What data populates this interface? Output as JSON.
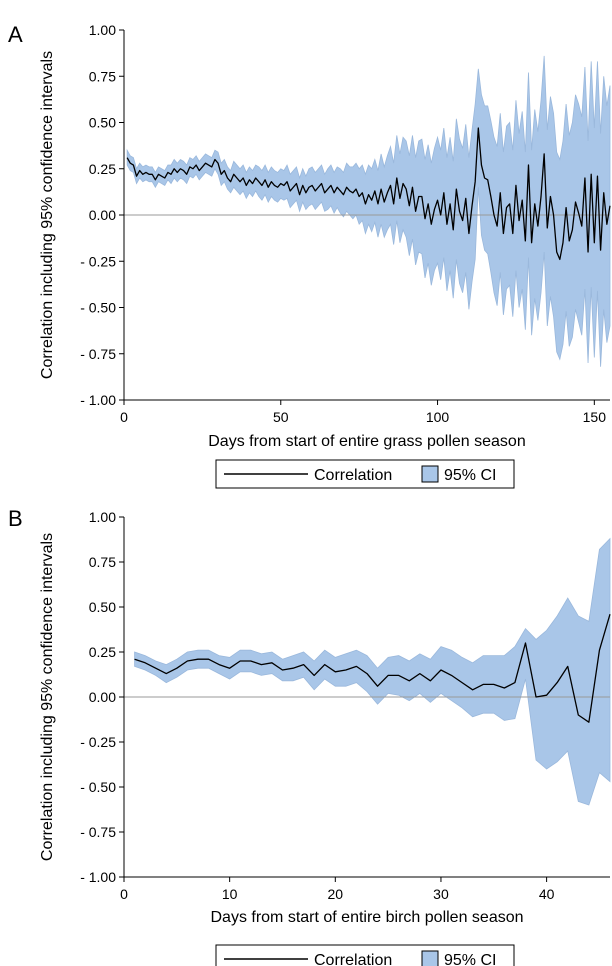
{
  "chart_data": [
    {
      "type": "line",
      "panel_label": "A",
      "xlabel": "Days from start of entire grass pollen season",
      "ylabel": "Correlation including 95% confidence intervals",
      "xlim": [
        0,
        155
      ],
      "ylim": [
        -1,
        1
      ],
      "x_ticks": [
        0,
        50,
        100,
        150
      ],
      "x_tick_labels": [
        "0",
        "50",
        "100",
        "150"
      ],
      "y_ticks": [
        1,
        0.75,
        0.5,
        0.25,
        0,
        -0.25,
        -0.5,
        -0.75,
        -1
      ],
      "y_tick_labels": [
        "1.00",
        "0.75",
        "0.50",
        "0.25",
        "0.00",
        "- 0.25",
        "- 0.50",
        "- 0.75",
        "- 1.00"
      ],
      "reference_line_y": 0,
      "legend": {
        "line_label": "Correlation",
        "band_label": "95% CI",
        "placement": "bottom"
      },
      "colors": {
        "line": "#000000",
        "band": "#a9c6e8",
        "band_edge": "#9ab8dc",
        "reference": "#999999"
      },
      "series": [
        {
          "name": "Correlation",
          "x": [
            1,
            2,
            3,
            4,
            5,
            6,
            7,
            8,
            9,
            10,
            11,
            12,
            13,
            14,
            15,
            16,
            17,
            18,
            19,
            20,
            21,
            22,
            23,
            24,
            25,
            26,
            27,
            28,
            29,
            30,
            31,
            32,
            33,
            34,
            35,
            36,
            37,
            38,
            39,
            40,
            41,
            42,
            43,
            44,
            45,
            46,
            47,
            48,
            49,
            50,
            51,
            52,
            53,
            54,
            55,
            56,
            57,
            58,
            59,
            60,
            61,
            62,
            63,
            64,
            65,
            66,
            67,
            68,
            69,
            70,
            71,
            72,
            73,
            74,
            75,
            76,
            77,
            78,
            79,
            80,
            81,
            82,
            83,
            84,
            85,
            86,
            87,
            88,
            89,
            90,
            91,
            92,
            93,
            94,
            95,
            96,
            97,
            98,
            99,
            100,
            101,
            102,
            103,
            104,
            105,
            106,
            107,
            108,
            109,
            110,
            111,
            112,
            113,
            114,
            115,
            116,
            117,
            118,
            119,
            120,
            121,
            122,
            123,
            124,
            125,
            126,
            127,
            128,
            129,
            130,
            131,
            132,
            133,
            134,
            135,
            136,
            137,
            138,
            139,
            140,
            141,
            142,
            143,
            144,
            145,
            146,
            147,
            148,
            149,
            150,
            151,
            152,
            153,
            154,
            155
          ],
          "values": [
            0.31,
            0.28,
            0.27,
            0.21,
            0.24,
            0.22,
            0.23,
            0.22,
            0.22,
            0.19,
            0.22,
            0.21,
            0.2,
            0.23,
            0.22,
            0.25,
            0.23,
            0.25,
            0.24,
            0.22,
            0.26,
            0.25,
            0.27,
            0.24,
            0.26,
            0.28,
            0.27,
            0.26,
            0.3,
            0.28,
            0.22,
            0.24,
            0.2,
            0.18,
            0.22,
            0.2,
            0.18,
            0.2,
            0.16,
            0.19,
            0.17,
            0.2,
            0.18,
            0.16,
            0.19,
            0.15,
            0.18,
            0.16,
            0.15,
            0.17,
            0.16,
            0.18,
            0.13,
            0.15,
            0.17,
            0.11,
            0.16,
            0.12,
            0.15,
            0.16,
            0.13,
            0.15,
            0.17,
            0.12,
            0.14,
            0.16,
            0.12,
            0.15,
            0.13,
            0.11,
            0.15,
            0.13,
            0.12,
            0.14,
            0.1,
            0.12,
            0.06,
            0.11,
            0.08,
            0.13,
            0.06,
            0.14,
            0.07,
            0.12,
            0.16,
            0.06,
            0.2,
            0.09,
            0.17,
            0.14,
            0.05,
            0.15,
            0.02,
            0.1,
            0.1,
            -0.02,
            0.06,
            -0.05,
            0.03,
            0.08,
            0.0,
            0.12,
            -0.05,
            0.06,
            -0.08,
            0.14,
            0.02,
            -0.03,
            0.09,
            -0.1,
            0.05,
            0.18,
            0.47,
            0.27,
            0.2,
            0.19,
            0.1,
            0.0,
            -0.06,
            0.12,
            -0.1,
            0.04,
            0.06,
            -0.1,
            0.16,
            -0.03,
            0.08,
            -0.14,
            0.27,
            -0.15,
            0.06,
            -0.06,
            0.1,
            0.33,
            -0.07,
            0.1,
            0.0,
            -0.2,
            -0.24,
            -0.15,
            0.04,
            -0.14,
            -0.08,
            0.07,
            0.01,
            -0.06,
            0.2,
            -0.2,
            0.22,
            -0.15,
            0.21,
            -0.19,
            0.12,
            -0.05,
            0.05
          ]
        }
      ],
      "band": {
        "name": "95% CI",
        "lower": [
          0.27,
          0.24,
          0.23,
          0.17,
          0.2,
          0.18,
          0.19,
          0.18,
          0.18,
          0.15,
          0.18,
          0.17,
          0.16,
          0.19,
          0.17,
          0.2,
          0.18,
          0.2,
          0.19,
          0.17,
          0.21,
          0.2,
          0.22,
          0.19,
          0.21,
          0.23,
          0.22,
          0.21,
          0.25,
          0.22,
          0.16,
          0.18,
          0.14,
          0.12,
          0.15,
          0.13,
          0.11,
          0.13,
          0.09,
          0.12,
          0.1,
          0.13,
          0.1,
          0.08,
          0.11,
          0.07,
          0.1,
          0.08,
          0.07,
          0.09,
          0.08,
          0.09,
          0.04,
          0.06,
          0.08,
          0.02,
          0.07,
          0.03,
          0.05,
          0.06,
          0.03,
          0.05,
          0.07,
          0.02,
          0.03,
          0.05,
          0.01,
          0.04,
          0.01,
          -0.01,
          0.02,
          0.0,
          -0.02,
          0.0,
          -0.05,
          -0.03,
          -0.1,
          -0.05,
          -0.09,
          -0.04,
          -0.12,
          -0.05,
          -0.12,
          -0.08,
          -0.05,
          -0.16,
          -0.03,
          -0.15,
          -0.08,
          -0.12,
          -0.22,
          -0.13,
          -0.27,
          -0.2,
          -0.21,
          -0.34,
          -0.26,
          -0.38,
          -0.3,
          -0.26,
          -0.35,
          -0.23,
          -0.41,
          -0.3,
          -0.45,
          -0.24,
          -0.37,
          -0.42,
          -0.31,
          -0.51,
          -0.36,
          -0.24,
          0.15,
          -0.11,
          -0.19,
          -0.21,
          -0.31,
          -0.42,
          -0.49,
          -0.31,
          -0.54,
          -0.4,
          -0.38,
          -0.55,
          -0.3,
          -0.5,
          -0.4,
          -0.62,
          -0.23,
          -0.65,
          -0.45,
          -0.57,
          -0.42,
          -0.2,
          -0.6,
          -0.44,
          -0.55,
          -0.74,
          -0.78,
          -0.7,
          -0.52,
          -0.71,
          -0.66,
          -0.51,
          -0.58,
          -0.65,
          -0.4,
          -0.8,
          -0.39,
          -0.77,
          -0.41,
          -0.82,
          -0.51,
          -0.69,
          -0.6
        ],
        "upper": [
          0.35,
          0.32,
          0.31,
          0.25,
          0.28,
          0.26,
          0.27,
          0.26,
          0.26,
          0.23,
          0.26,
          0.25,
          0.24,
          0.27,
          0.27,
          0.3,
          0.28,
          0.3,
          0.29,
          0.27,
          0.31,
          0.3,
          0.32,
          0.29,
          0.31,
          0.33,
          0.32,
          0.31,
          0.35,
          0.34,
          0.28,
          0.3,
          0.26,
          0.24,
          0.29,
          0.27,
          0.25,
          0.27,
          0.23,
          0.26,
          0.24,
          0.27,
          0.26,
          0.24,
          0.27,
          0.23,
          0.26,
          0.24,
          0.23,
          0.25,
          0.24,
          0.27,
          0.22,
          0.24,
          0.26,
          0.2,
          0.25,
          0.21,
          0.25,
          0.26,
          0.23,
          0.25,
          0.27,
          0.22,
          0.25,
          0.27,
          0.23,
          0.26,
          0.25,
          0.23,
          0.28,
          0.26,
          0.26,
          0.28,
          0.25,
          0.27,
          0.22,
          0.27,
          0.25,
          0.3,
          0.24,
          0.33,
          0.26,
          0.32,
          0.37,
          0.28,
          0.43,
          0.33,
          0.42,
          0.4,
          0.32,
          0.43,
          0.31,
          0.4,
          0.41,
          0.3,
          0.38,
          0.28,
          0.36,
          0.42,
          0.35,
          0.47,
          0.31,
          0.42,
          0.29,
          0.52,
          0.41,
          0.36,
          0.49,
          0.31,
          0.46,
          0.6,
          0.79,
          0.65,
          0.59,
          0.59,
          0.51,
          0.42,
          0.37,
          0.55,
          0.34,
          0.48,
          0.5,
          0.35,
          0.62,
          0.44,
          0.56,
          0.34,
          0.77,
          0.35,
          0.57,
          0.45,
          0.62,
          0.86,
          0.46,
          0.64,
          0.55,
          0.34,
          0.3,
          0.4,
          0.6,
          0.43,
          0.5,
          0.65,
          0.6,
          0.53,
          0.8,
          0.4,
          0.83,
          0.47,
          0.83,
          0.44,
          0.75,
          0.59,
          0.7
        ]
      }
    },
    {
      "type": "line",
      "panel_label": "B",
      "xlabel": "Days from start of entire birch pollen season",
      "ylabel": "Correlation including 95% confidence intervals",
      "xlim": [
        0,
        46
      ],
      "ylim": [
        -1,
        1
      ],
      "x_ticks": [
        0,
        10,
        20,
        30,
        40
      ],
      "x_tick_labels": [
        "0",
        "10",
        "20",
        "30",
        "40"
      ],
      "y_ticks": [
        1,
        0.75,
        0.5,
        0.25,
        0,
        -0.25,
        -0.5,
        -0.75,
        -1
      ],
      "y_tick_labels": [
        "1.00",
        "0.75",
        "0.50",
        "0.25",
        "0.00",
        "- 0.25",
        "- 0.50",
        "- 0.75",
        "- 1.00"
      ],
      "reference_line_y": 0,
      "legend": {
        "line_label": "Correlation",
        "band_label": "95% CI",
        "placement": "bottom"
      },
      "colors": {
        "line": "#000000",
        "band": "#a9c6e8",
        "band_edge": "#9ab8dc",
        "reference": "#999999"
      },
      "series": [
        {
          "name": "Correlation",
          "x": [
            1,
            2,
            3,
            4,
            5,
            6,
            7,
            8,
            9,
            10,
            11,
            12,
            13,
            14,
            15,
            16,
            17,
            18,
            19,
            20,
            21,
            22,
            23,
            24,
            25,
            26,
            27,
            28,
            29,
            30,
            31,
            32,
            33,
            34,
            35,
            36,
            37,
            38,
            39,
            40,
            41,
            42,
            43,
            44,
            45,
            46
          ],
          "values": [
            0.21,
            0.19,
            0.16,
            0.13,
            0.16,
            0.2,
            0.21,
            0.21,
            0.18,
            0.16,
            0.2,
            0.2,
            0.18,
            0.19,
            0.15,
            0.16,
            0.18,
            0.12,
            0.18,
            0.14,
            0.15,
            0.17,
            0.13,
            0.06,
            0.12,
            0.12,
            0.09,
            0.13,
            0.09,
            0.15,
            0.12,
            0.08,
            0.04,
            0.07,
            0.07,
            0.05,
            0.08,
            0.3,
            0.0,
            0.01,
            0.08,
            0.17,
            -0.1,
            -0.14,
            0.26,
            0.46
          ]
        }
      ],
      "band": {
        "name": "95% CI",
        "lower": [
          0.17,
          0.15,
          0.12,
          0.08,
          0.11,
          0.15,
          0.16,
          0.16,
          0.13,
          0.1,
          0.14,
          0.14,
          0.12,
          0.13,
          0.09,
          0.09,
          0.11,
          0.04,
          0.1,
          0.06,
          0.06,
          0.08,
          0.03,
          -0.04,
          0.02,
          0.01,
          -0.02,
          0.02,
          -0.03,
          0.02,
          -0.02,
          -0.06,
          -0.11,
          -0.09,
          -0.09,
          -0.13,
          -0.12,
          0.1,
          -0.35,
          -0.4,
          -0.36,
          -0.3,
          -0.58,
          -0.6,
          -0.42,
          -0.47
        ],
        "upper": [
          0.25,
          0.23,
          0.2,
          0.18,
          0.21,
          0.25,
          0.26,
          0.26,
          0.23,
          0.22,
          0.26,
          0.26,
          0.24,
          0.25,
          0.21,
          0.23,
          0.25,
          0.2,
          0.26,
          0.22,
          0.24,
          0.26,
          0.23,
          0.16,
          0.22,
          0.23,
          0.2,
          0.24,
          0.21,
          0.28,
          0.26,
          0.22,
          0.19,
          0.23,
          0.23,
          0.23,
          0.28,
          0.38,
          0.32,
          0.37,
          0.45,
          0.55,
          0.45,
          0.42,
          0.82,
          0.88
        ]
      }
    }
  ]
}
